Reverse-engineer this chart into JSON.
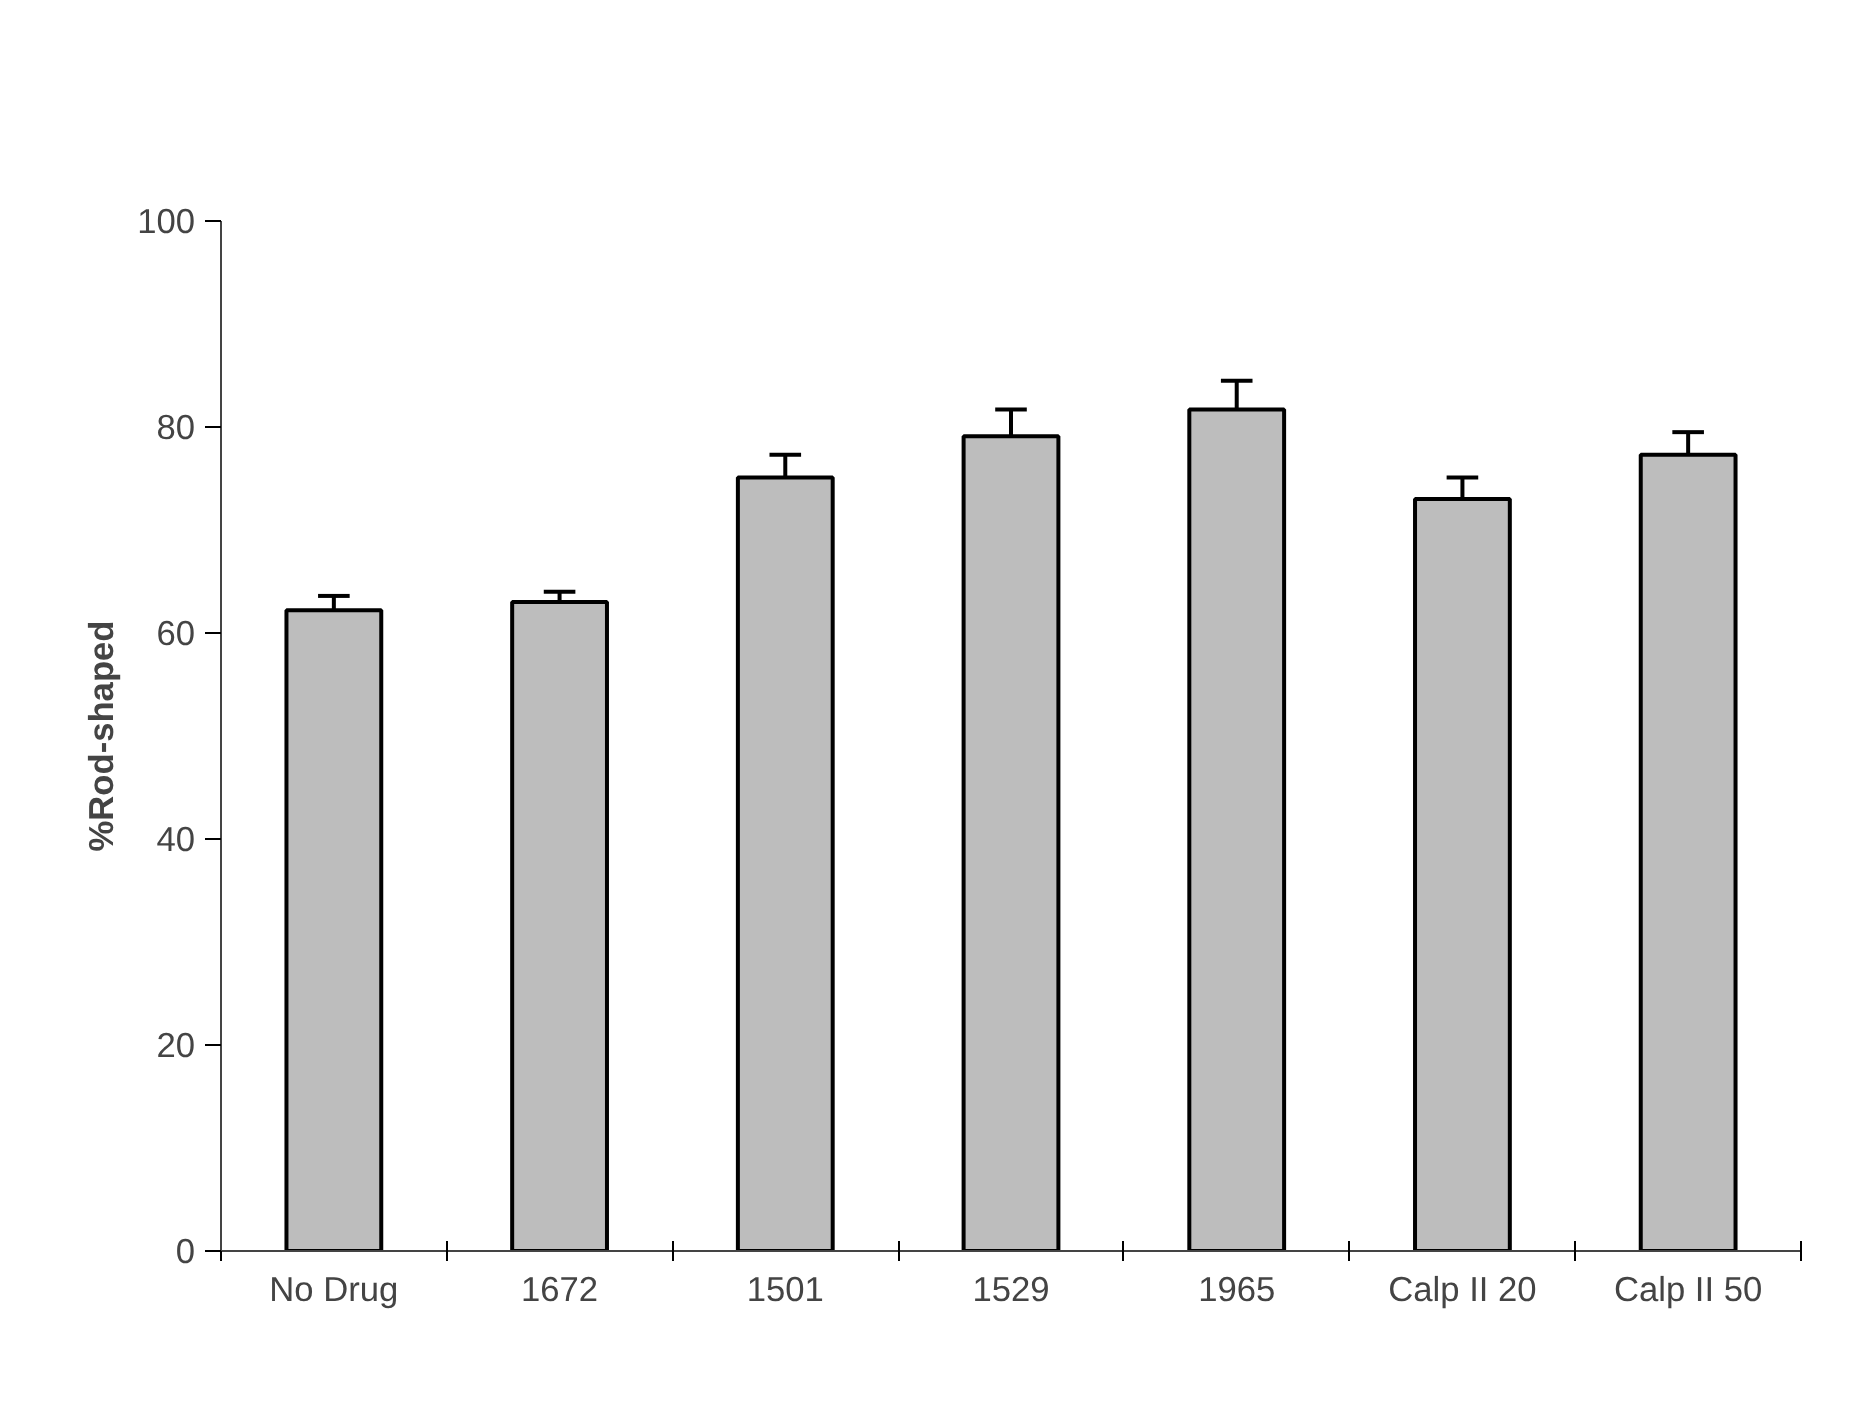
{
  "chart_data": {
    "type": "bar",
    "ylabel": "%Rod-shaped",
    "categories": [
      "No Drug",
      "1672",
      "1501",
      "1529",
      "1965",
      "Calp II 20",
      "Calp II 50"
    ],
    "values": [
      62.2,
      63.0,
      75.1,
      79.1,
      81.7,
      73.0,
      77.3
    ],
    "errors": [
      [
        62.2,
        63.6
      ],
      [
        63.0,
        64.0
      ],
      [
        75.1,
        77.3
      ],
      [
        79.1,
        81.7
      ],
      [
        81.7,
        84.5
      ],
      [
        73.0,
        75.1
      ],
      [
        77.3,
        79.5
      ]
    ],
    "color": "#bdbdbd",
    "ylim": [
      0,
      100
    ],
    "yticks": [
      0,
      20,
      40,
      60,
      80,
      100
    ],
    "grid": false
  }
}
